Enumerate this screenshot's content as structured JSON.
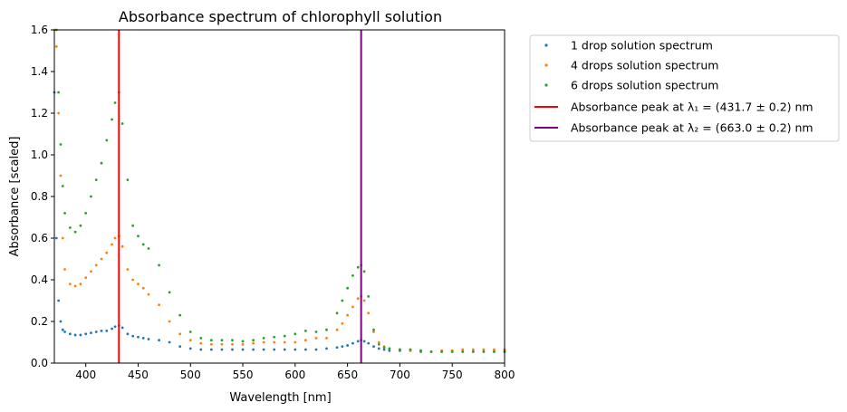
{
  "chart_data": {
    "type": "scatter",
    "title": "Absorbance spectrum of chlorophyll solution",
    "xlabel": "Wavelength [nm]",
    "ylabel": "Absorbance [scaled]",
    "xlim": [
      370,
      800
    ],
    "ylim": [
      0.0,
      1.6
    ],
    "xticks": [
      400,
      450,
      500,
      550,
      600,
      650,
      700,
      750,
      800
    ],
    "yticks": [
      0.0,
      0.2,
      0.4,
      0.6,
      0.8,
      1.0,
      1.2,
      1.4,
      1.6
    ],
    "xtick_labels": [
      "400",
      "450",
      "500",
      "550",
      "600",
      "650",
      "700",
      "750",
      "800"
    ],
    "ytick_labels": [
      "0.0",
      "0.2",
      "0.4",
      "0.6",
      "0.8",
      "1.0",
      "1.2",
      "1.4",
      "1.6"
    ],
    "grid": false,
    "legend_position": "outside-right",
    "series": [
      {
        "name": "1 drop solution spectrum",
        "color": "#1f77b4",
        "x": [
          370,
          372,
          374,
          376,
          378,
          380,
          385,
          390,
          395,
          400,
          405,
          410,
          415,
          420,
          425,
          428,
          431.7,
          435,
          440,
          445,
          450,
          455,
          460,
          470,
          480,
          490,
          500,
          510,
          520,
          530,
          540,
          550,
          560,
          570,
          580,
          590,
          600,
          610,
          620,
          630,
          640,
          645,
          650,
          655,
          660,
          663,
          666,
          670,
          675,
          680,
          685,
          690,
          700,
          710,
          720,
          730,
          740,
          750,
          760,
          770,
          780,
          790,
          800
        ],
        "y": [
          1.3,
          0.6,
          0.3,
          0.2,
          0.16,
          0.15,
          0.14,
          0.135,
          0.135,
          0.14,
          0.145,
          0.15,
          0.155,
          0.155,
          0.165,
          0.175,
          0.18,
          0.17,
          0.14,
          0.13,
          0.125,
          0.12,
          0.115,
          0.11,
          0.1,
          0.08,
          0.07,
          0.065,
          0.065,
          0.065,
          0.065,
          0.065,
          0.065,
          0.065,
          0.065,
          0.065,
          0.065,
          0.065,
          0.065,
          0.07,
          0.075,
          0.08,
          0.085,
          0.095,
          0.105,
          0.11,
          0.105,
          0.095,
          0.08,
          0.07,
          0.065,
          0.06,
          0.06,
          0.06,
          0.055,
          0.055,
          0.055,
          0.055,
          0.055,
          0.055,
          0.055,
          0.055,
          0.055
        ]
      },
      {
        "name": "4 drops solution spectrum",
        "color": "#ff7f0e",
        "x": [
          370,
          372,
          374,
          376,
          378,
          380,
          385,
          390,
          395,
          400,
          405,
          410,
          415,
          420,
          425,
          428,
          431.7,
          435,
          440,
          445,
          450,
          455,
          460,
          470,
          480,
          490,
          500,
          510,
          520,
          530,
          540,
          550,
          560,
          570,
          580,
          590,
          600,
          610,
          620,
          630,
          640,
          645,
          650,
          655,
          660,
          663,
          666,
          670,
          675,
          680,
          685,
          690,
          700,
          710,
          720,
          730,
          740,
          750,
          760,
          770,
          780,
          790,
          800
        ],
        "y": [
          1.6,
          1.52,
          1.2,
          0.9,
          0.6,
          0.45,
          0.38,
          0.37,
          0.38,
          0.41,
          0.44,
          0.47,
          0.5,
          0.53,
          0.57,
          0.6,
          0.61,
          0.56,
          0.45,
          0.4,
          0.38,
          0.36,
          0.33,
          0.28,
          0.2,
          0.14,
          0.11,
          0.095,
          0.09,
          0.09,
          0.09,
          0.09,
          0.095,
          0.1,
          0.1,
          0.1,
          0.1,
          0.11,
          0.12,
          0.12,
          0.16,
          0.19,
          0.23,
          0.27,
          0.31,
          0.32,
          0.3,
          0.24,
          0.15,
          0.1,
          0.08,
          0.07,
          0.065,
          0.06,
          0.06,
          0.055,
          0.06,
          0.06,
          0.065,
          0.065,
          0.065,
          0.065,
          0.065
        ]
      },
      {
        "name": "6 drops solution spectrum",
        "color": "#2ca02c",
        "x": [
          372,
          374,
          376,
          378,
          380,
          385,
          390,
          395,
          400,
          405,
          410,
          415,
          420,
          425,
          428,
          431.7,
          435,
          440,
          445,
          450,
          455,
          460,
          470,
          480,
          490,
          500,
          510,
          520,
          530,
          540,
          550,
          560,
          570,
          580,
          590,
          600,
          610,
          620,
          630,
          640,
          645,
          650,
          655,
          660,
          663,
          666,
          670,
          675,
          680,
          685,
          690,
          700,
          710,
          720,
          730,
          740,
          750,
          760,
          770,
          780,
          790,
          800
        ],
        "y": [
          1.6,
          1.3,
          1.05,
          0.85,
          0.72,
          0.65,
          0.63,
          0.66,
          0.72,
          0.8,
          0.88,
          0.96,
          1.07,
          1.17,
          1.25,
          1.3,
          1.15,
          0.88,
          0.66,
          0.61,
          0.57,
          0.55,
          0.47,
          0.34,
          0.23,
          0.15,
          0.12,
          0.11,
          0.11,
          0.11,
          0.105,
          0.11,
          0.12,
          0.125,
          0.13,
          0.14,
          0.155,
          0.15,
          0.16,
          0.24,
          0.3,
          0.36,
          0.42,
          0.46,
          0.47,
          0.44,
          0.32,
          0.16,
          0.09,
          0.075,
          0.07,
          0.065,
          0.065,
          0.06,
          0.055,
          0.055,
          0.055,
          0.055,
          0.055,
          0.055,
          0.055,
          0.055
        ]
      }
    ],
    "vlines": [
      {
        "name": "Absorbance peak at λ₁ = (431.7 ± 0.2) nm",
        "x": 431.7,
        "color": "#ff0000"
      },
      {
        "name": "Absorbance peak at λ₂ = (663.0 ± 0.2) nm",
        "x": 663.0,
        "color": "#800080"
      }
    ]
  }
}
